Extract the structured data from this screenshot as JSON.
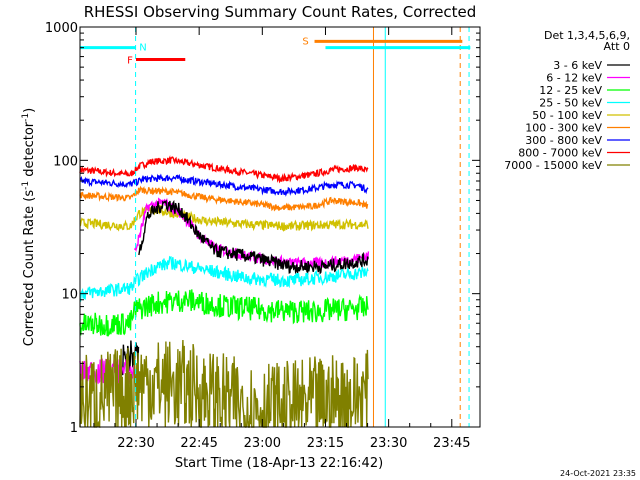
{
  "chart_data": {
    "type": "line",
    "title": "RHESSI Observing Summary Count Rates, Corrected",
    "xlabel": "Start Time (18-Apr-13 22:16:42)",
    "ylabel_parts": [
      "Corrected Count Rate (s",
      "-1",
      " detector",
      "-1",
      ")"
    ],
    "y_scale": "log",
    "ylim": [
      1,
      1000
    ],
    "y_ticks": [
      {
        "label": "1",
        "v": 1
      },
      {
        "label": "10",
        "v": 10
      },
      {
        "label": "100",
        "v": 100
      },
      {
        "label": "1000",
        "v": 1000
      }
    ],
    "x_units": "minutes after 22:16:42",
    "xlim": [
      0,
      95
    ],
    "x_ticks": [
      {
        "label": "22:30",
        "t": 13.3
      },
      {
        "label": "22:45",
        "t": 28.3
      },
      {
        "label": "23:00",
        "t": 43.3
      },
      {
        "label": "23:15",
        "t": 58.3
      },
      {
        "label": "23:30",
        "t": 73.3
      },
      {
        "label": "23:45",
        "t": 88.3
      }
    ],
    "legend_header": [
      "Det 1,3,4,5,6,9,",
      "Att 0"
    ],
    "legend_position": "right",
    "series": [
      {
        "name": "3 - 6 keV",
        "color": "#000000"
      },
      {
        "name": "6 - 12 keV",
        "color": "#ff00ff"
      },
      {
        "name": "12 - 25 keV",
        "color": "#00ff00"
      },
      {
        "name": "25 - 50 keV",
        "color": "#00ffff"
      },
      {
        "name": "50 - 100 keV",
        "color": "#d0c000"
      },
      {
        "name": "100 - 300 keV",
        "color": "#ff7f00"
      },
      {
        "name": "300 - 800 keV",
        "color": "#0000ff"
      },
      {
        "name": "800 - 7000 keV",
        "color": "#ff0000"
      },
      {
        "name": "7000 - 15000 keV",
        "color": "#808000"
      }
    ],
    "curves": [
      {
        "series": 7,
        "color": "#ff0000",
        "noise": 0.025,
        "tmax": 68.5,
        "pts": [
          [
            0,
            85
          ],
          [
            12,
            78
          ],
          [
            14,
            90
          ],
          [
            17,
            98
          ],
          [
            22,
            100
          ],
          [
            30,
            90
          ],
          [
            40,
            80
          ],
          [
            48,
            73
          ],
          [
            55,
            78
          ],
          [
            60,
            85
          ],
          [
            66,
            88
          ],
          [
            68.5,
            83
          ]
        ]
      },
      {
        "series": 6,
        "color": "#0000ff",
        "noise": 0.025,
        "tmax": 68.5,
        "pts": [
          [
            0,
            70
          ],
          [
            12,
            66
          ],
          [
            15,
            72
          ],
          [
            22,
            74
          ],
          [
            30,
            68
          ],
          [
            40,
            62
          ],
          [
            48,
            58
          ],
          [
            55,
            61
          ],
          [
            60,
            66
          ],
          [
            66,
            65
          ],
          [
            68.5,
            60
          ]
        ]
      },
      {
        "series": 5,
        "color": "#ff7f00",
        "noise": 0.025,
        "tmax": 68.5,
        "pts": [
          [
            0,
            55
          ],
          [
            12,
            52
          ],
          [
            14,
            60
          ],
          [
            22,
            58
          ],
          [
            30,
            52
          ],
          [
            40,
            48
          ],
          [
            48,
            44
          ],
          [
            55,
            45
          ],
          [
            60,
            50
          ],
          [
            66,
            48
          ],
          [
            68.5,
            45
          ]
        ]
      },
      {
        "series": 4,
        "color": "#d0c000",
        "noise": 0.035,
        "tmax": 68.5,
        "pts": [
          [
            0,
            34
          ],
          [
            12,
            32
          ],
          [
            14,
            40
          ],
          [
            18,
            43
          ],
          [
            22,
            40
          ],
          [
            30,
            35
          ],
          [
            40,
            33
          ],
          [
            50,
            32
          ],
          [
            60,
            33
          ],
          [
            68.5,
            33
          ]
        ]
      },
      {
        "series": 1,
        "color": "#ff00ff",
        "noise": 0.04,
        "tmin": 13,
        "tmax": 68.5,
        "pts": [
          [
            13,
            20
          ],
          [
            16,
            45
          ],
          [
            20,
            48
          ],
          [
            24,
            40
          ],
          [
            28,
            28
          ],
          [
            32,
            22
          ],
          [
            40,
            19
          ],
          [
            50,
            17
          ],
          [
            58,
            17
          ],
          [
            64,
            18
          ],
          [
            68.5,
            19
          ]
        ]
      },
      {
        "series": 0,
        "color": "#000000",
        "noise": 0.05,
        "tmin": 14,
        "tmax": 68.5,
        "pts": [
          [
            14,
            20
          ],
          [
            16,
            38
          ],
          [
            20,
            48
          ],
          [
            24,
            42
          ],
          [
            28,
            28
          ],
          [
            32,
            21
          ],
          [
            40,
            19
          ],
          [
            50,
            16
          ],
          [
            58,
            16
          ],
          [
            64,
            17
          ],
          [
            68.5,
            18
          ]
        ]
      },
      {
        "series": 3,
        "color": "#00ffff",
        "noise": 0.05,
        "tmax": 68.5,
        "pts": [
          [
            0,
            10
          ],
          [
            12,
            11
          ],
          [
            14,
            13
          ],
          [
            18,
            16
          ],
          [
            22,
            17
          ],
          [
            30,
            15
          ],
          [
            40,
            13
          ],
          [
            50,
            12.5
          ],
          [
            60,
            13.5
          ],
          [
            68.5,
            14.5
          ]
        ]
      },
      {
        "series": 2,
        "color": "#00ff00",
        "noise": 0.09,
        "tmax": 68.5,
        "pts": [
          [
            0,
            5.8
          ],
          [
            12,
            6
          ],
          [
            13,
            7.5
          ],
          [
            18,
            8.5
          ],
          [
            25,
            9
          ],
          [
            35,
            8
          ],
          [
            45,
            7.5
          ],
          [
            55,
            7.3
          ],
          [
            62,
            7.6
          ],
          [
            68.5,
            7.8
          ]
        ]
      },
      {
        "series": 0,
        "color": "#000000",
        "noise": 0.12,
        "tmin": 10,
        "tmax": 14,
        "pts": [
          [
            10,
            3.2
          ],
          [
            14,
            3.6
          ]
        ]
      },
      {
        "series": 1,
        "color": "#ff00ff",
        "noise": 0.1,
        "tmax": 13,
        "pts": [
          [
            0,
            2.6
          ],
          [
            13,
            2.6
          ]
        ]
      },
      {
        "series": 8,
        "color": "#808000",
        "noise": 0.35,
        "tmax": 68.5,
        "clip": 1,
        "pts": [
          [
            0,
            1.6
          ],
          [
            10,
            1.8
          ],
          [
            14,
            2.2
          ],
          [
            25,
            2
          ],
          [
            40,
            1.4
          ],
          [
            50,
            1.4
          ],
          [
            60,
            1.6
          ],
          [
            68.5,
            1.7
          ]
        ]
      }
    ],
    "flags": {
      "saa_label": "S",
      "flare_label": "F",
      "night_label": "N",
      "night_bar": {
        "t0": 0,
        "t1": 13.3,
        "y": 700
      },
      "night_bar2": {
        "t0": 58.3,
        "t1": 92.7,
        "y": 700
      },
      "flare_bar": {
        "t0": 13.3,
        "t1": 25,
        "y": 570
      },
      "saa_bar": {
        "t0": 55.7,
        "t1": 90.8,
        "y": 780
      },
      "vlines": [
        {
          "t": 13.2,
          "color": "#00ffff",
          "dash": true
        },
        {
          "t": 90.3,
          "color": "#ff7f00",
          "dash": true
        },
        {
          "t": 92.4,
          "color": "#00ffff",
          "dash": true
        },
        {
          "t": 69.7,
          "color": "#ff7f00",
          "dash": false
        },
        {
          "t": 72.5,
          "color": "#00ffff",
          "dash": false
        }
      ]
    }
  },
  "footer_date": "24-Oct-2021 23:35"
}
